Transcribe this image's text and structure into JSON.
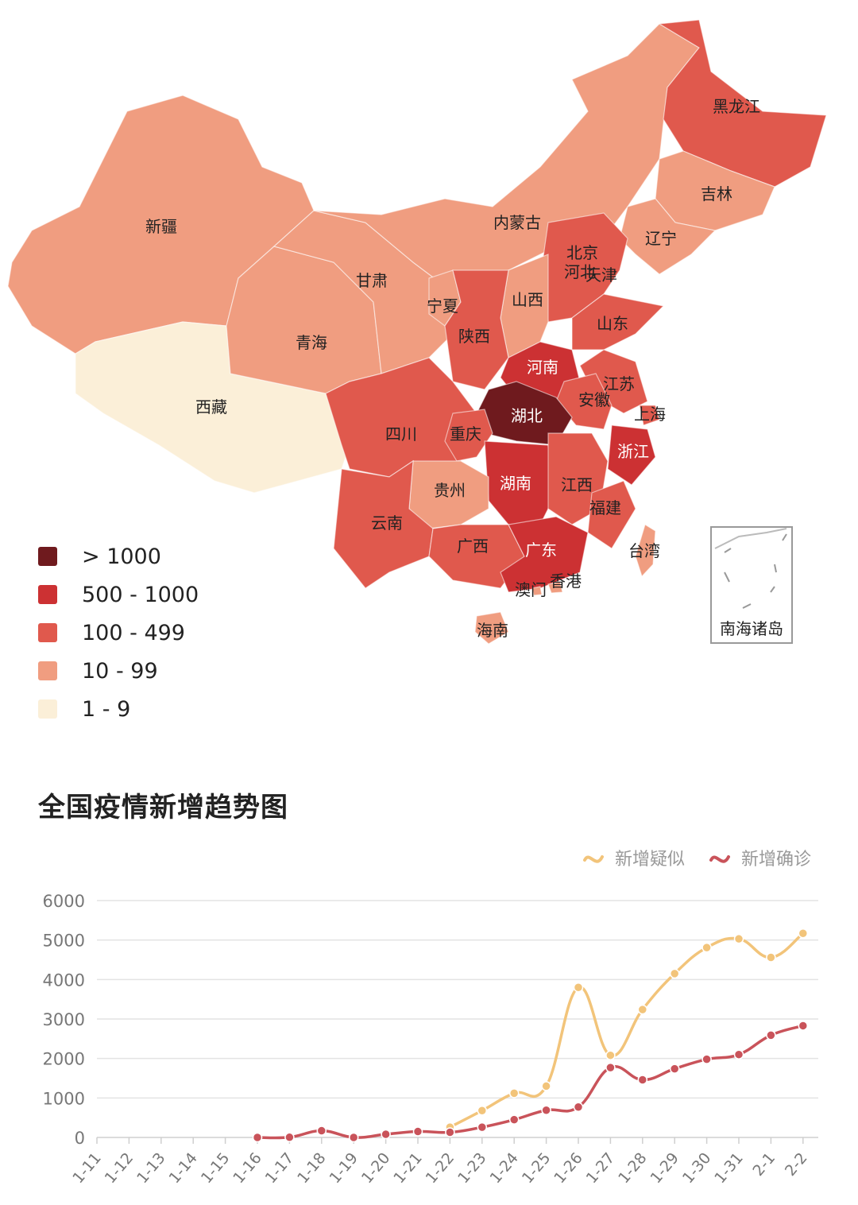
{
  "map": {
    "legend": [
      {
        "label": "> 1000",
        "color": "#6f1a1e"
      },
      {
        "label": "500 - 1000",
        "color": "#cc3133"
      },
      {
        "label": "100 - 499",
        "color": "#e0594d"
      },
      {
        "label": "10 - 99",
        "color": "#f09d80"
      },
      {
        "label": "1 - 9",
        "color": "#fbefd8"
      }
    ],
    "provinces": [
      {
        "name": "新疆",
        "color": "#f09d80"
      },
      {
        "name": "西藏",
        "color": "#fbefd8"
      },
      {
        "name": "青海",
        "color": "#f09d80"
      },
      {
        "name": "甘肃",
        "color": "#f09d80"
      },
      {
        "name": "内蒙古",
        "color": "#f09d80"
      },
      {
        "name": "黑龙江",
        "color": "#e0594d"
      },
      {
        "name": "吉林",
        "color": "#f09d80"
      },
      {
        "name": "辽宁",
        "color": "#f09d80"
      },
      {
        "name": "北京",
        "color": "#e0594d"
      },
      {
        "name": "天津",
        "color": "#f09d80"
      },
      {
        "name": "河北",
        "color": "#e0594d"
      },
      {
        "name": "山西",
        "color": "#f09d80"
      },
      {
        "name": "宁夏",
        "color": "#f09d80"
      },
      {
        "name": "陕西",
        "color": "#e0594d"
      },
      {
        "name": "山东",
        "color": "#e0594d"
      },
      {
        "name": "河南",
        "color": "#cc3133"
      },
      {
        "name": "江苏",
        "color": "#e0594d"
      },
      {
        "name": "安徽",
        "color": "#e0594d"
      },
      {
        "name": "上海",
        "color": "#e0594d"
      },
      {
        "name": "湖北",
        "color": "#6f1a1e"
      },
      {
        "name": "四川",
        "color": "#e0594d"
      },
      {
        "name": "重庆",
        "color": "#e0594d"
      },
      {
        "name": "浙江",
        "color": "#cc3133"
      },
      {
        "name": "湖南",
        "color": "#cc3133"
      },
      {
        "name": "江西",
        "color": "#e0594d"
      },
      {
        "name": "贵州",
        "color": "#f09d80"
      },
      {
        "name": "福建",
        "color": "#e0594d"
      },
      {
        "name": "云南",
        "color": "#e0594d"
      },
      {
        "name": "广西",
        "color": "#e0594d"
      },
      {
        "name": "广东",
        "color": "#cc3133"
      },
      {
        "name": "台湾",
        "color": "#f09d80"
      },
      {
        "name": "香港",
        "color": "#f09d80"
      },
      {
        "name": "澳门",
        "color": "#f09d80"
      },
      {
        "name": "海南",
        "color": "#f09d80"
      }
    ],
    "inset_label": "南海诸岛"
  },
  "chart_data": {
    "type": "line",
    "title": "全国疫情新增趋势图",
    "categories": [
      "1-11",
      "1-12",
      "1-13",
      "1-14",
      "1-15",
      "1-16",
      "1-17",
      "1-18",
      "1-19",
      "1-20",
      "1-21",
      "1-22",
      "1-23",
      "1-24",
      "1-25",
      "1-26",
      "1-27",
      "1-28",
      "1-29",
      "1-30",
      "1-31",
      "2-1",
      "2-2"
    ],
    "series": [
      {
        "name": "新增疑似",
        "color": "#f2c47a",
        "values": [
          null,
          null,
          null,
          null,
          null,
          null,
          null,
          null,
          null,
          null,
          null,
          260,
          680,
          1120,
          1300,
          3800,
          2080,
          3240,
          4150,
          4810,
          5030,
          4560,
          5170
        ]
      },
      {
        "name": "新增确诊",
        "color": "#c9535a",
        "values": [
          null,
          null,
          null,
          null,
          null,
          0,
          4,
          170,
          0,
          80,
          150,
          130,
          260,
          450,
          690,
          770,
          1770,
          1460,
          1740,
          1980,
          2100,
          2590,
          2830
        ]
      }
    ],
    "ylim": [
      0,
      6000
    ],
    "yticks": [
      0,
      1000,
      2000,
      3000,
      4000,
      5000,
      6000
    ],
    "grid": true,
    "legend_position": "top-right"
  }
}
